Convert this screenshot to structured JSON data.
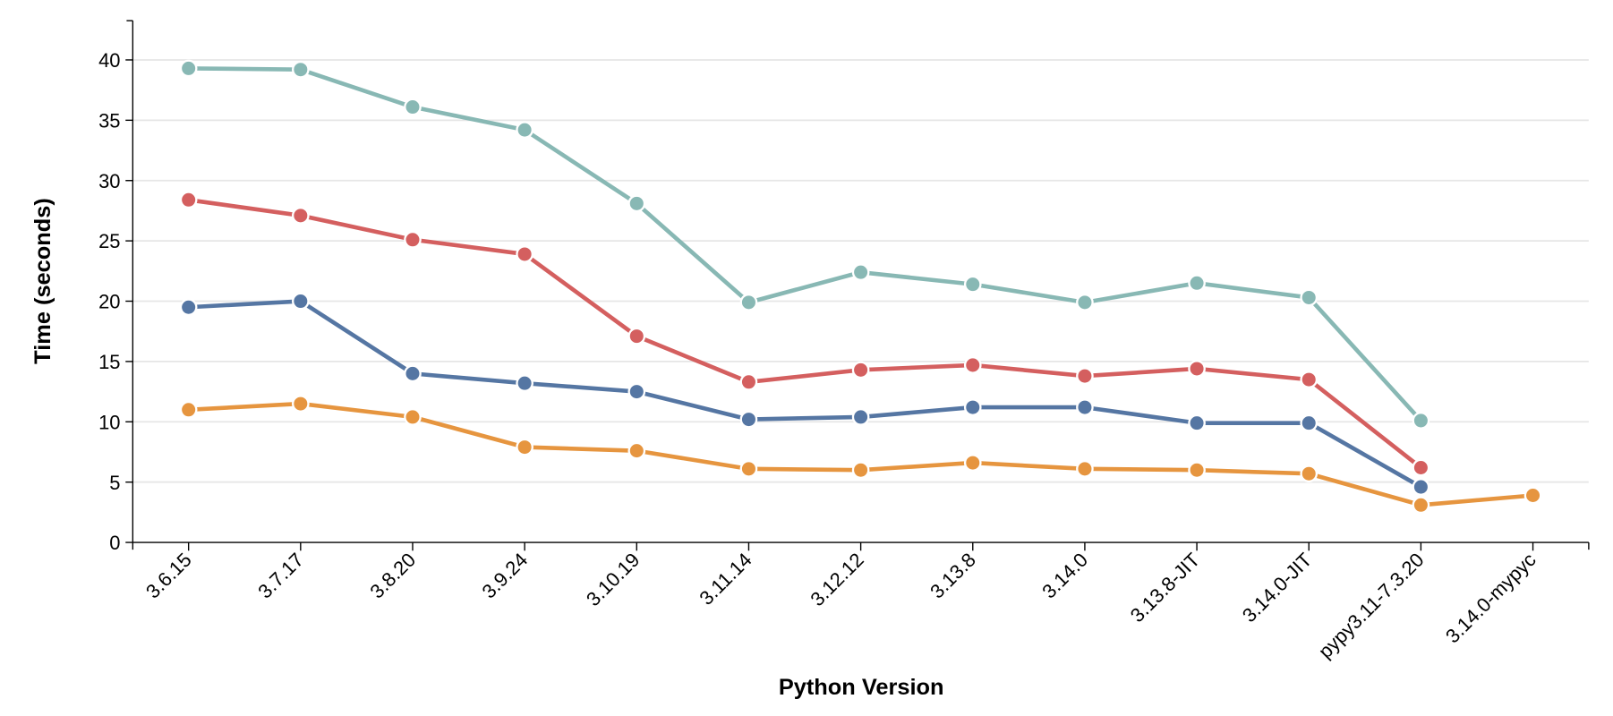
{
  "chart_data": {
    "type": "line",
    "title": "",
    "xlabel": "Python Version",
    "ylabel": "Time (seconds)",
    "ylim": [
      0,
      43
    ],
    "yticks": [
      0,
      5,
      10,
      15,
      20,
      25,
      30,
      35,
      40
    ],
    "grid": "horizontal",
    "legend": "none",
    "categories": [
      "3.6.15",
      "3.7.17",
      "3.8.20",
      "3.9.24",
      "3.10.19",
      "3.11.14",
      "3.12.12",
      "3.13.8",
      "3.14.0",
      "3.13.8-JIT",
      "3.14.0-JIT",
      "pypy3.11-7.3.20",
      "3.14.0-mypyc"
    ],
    "series": [
      {
        "color": "#88b8b4",
        "values": [
          39.3,
          39.2,
          36.1,
          34.2,
          28.1,
          19.9,
          22.4,
          21.4,
          19.9,
          21.5,
          20.3,
          10.1,
          null
        ]
      },
      {
        "color": "#d45f5f",
        "values": [
          28.4,
          27.1,
          25.1,
          23.9,
          17.1,
          13.3,
          14.3,
          14.7,
          13.8,
          14.4,
          13.5,
          6.2,
          null
        ]
      },
      {
        "color": "#5576a3",
        "values": [
          19.5,
          20.0,
          14.0,
          13.2,
          12.5,
          10.2,
          10.4,
          11.2,
          11.2,
          9.9,
          9.9,
          4.6,
          null
        ]
      },
      {
        "color": "#e6953f",
        "values": [
          11.0,
          11.5,
          10.4,
          7.9,
          7.6,
          6.1,
          6.0,
          6.6,
          6.1,
          6.0,
          5.7,
          3.1,
          3.9
        ]
      }
    ]
  }
}
